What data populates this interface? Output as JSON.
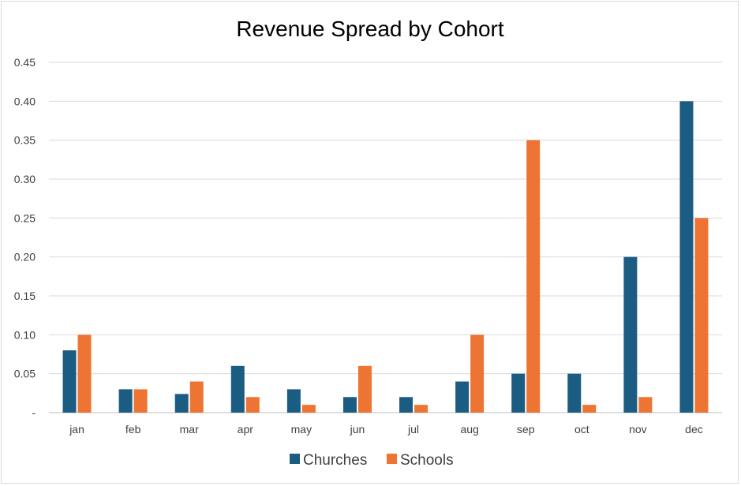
{
  "chart_data": {
    "type": "bar",
    "title": "Revenue Spread by Cohort",
    "xlabel": "",
    "ylabel": "",
    "ylim": [
      0,
      0.45
    ],
    "y_ticks": [
      "-",
      "0.05",
      "0.10",
      "0.15",
      "0.20",
      "0.25",
      "0.30",
      "0.35",
      "0.40",
      "0.45"
    ],
    "grid": true,
    "legend_position": "bottom",
    "categories": [
      "jan",
      "feb",
      "mar",
      "apr",
      "may",
      "jun",
      "jul",
      "aug",
      "sep",
      "oct",
      "nov",
      "dec"
    ],
    "series": [
      {
        "name": "Churches",
        "color": "#1b5c82",
        "values": [
          0.08,
          0.03,
          0.024,
          0.06,
          0.03,
          0.02,
          0.02,
          0.04,
          0.05,
          0.05,
          0.2,
          0.4
        ]
      },
      {
        "name": "Schools",
        "color": "#ee7433",
        "values": [
          0.1,
          0.03,
          0.04,
          0.02,
          0.01,
          0.06,
          0.01,
          0.1,
          0.35,
          0.01,
          0.02,
          0.25
        ]
      }
    ]
  }
}
